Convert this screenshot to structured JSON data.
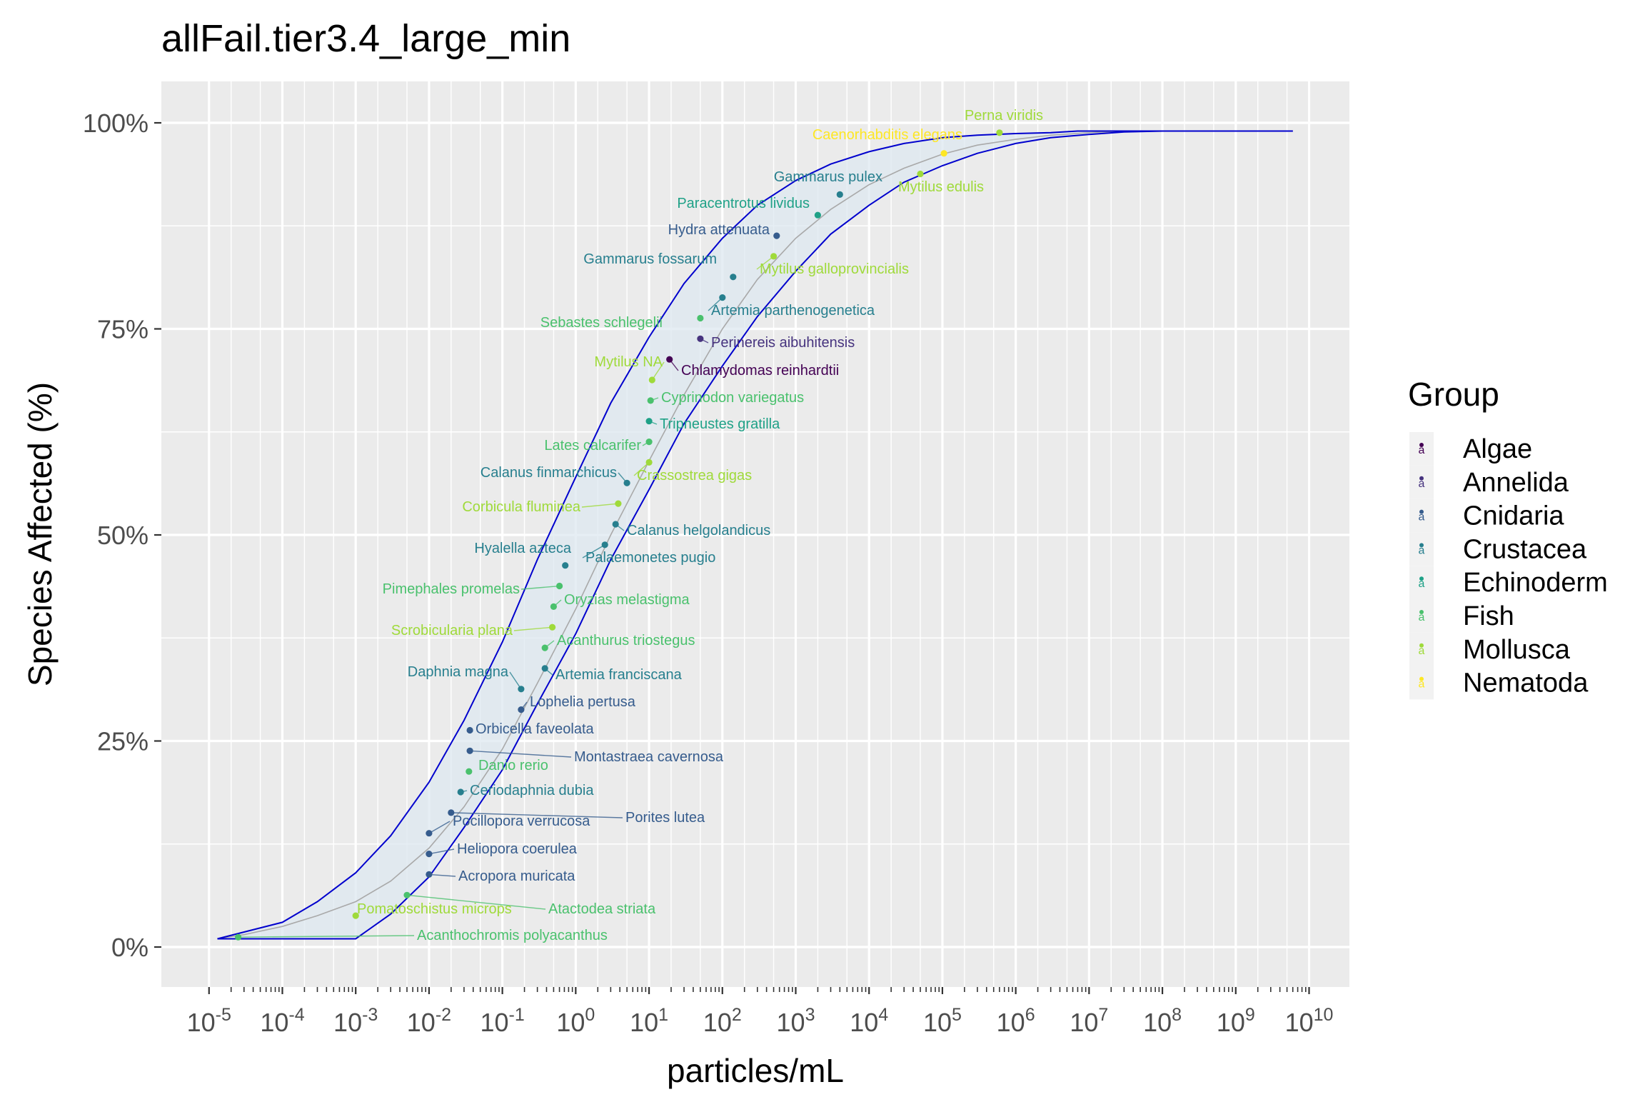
{
  "chart_data": {
    "type": "scatter",
    "title": "allFail.tier3.4_large_min",
    "xlabel": "particles/mL",
    "ylabel": "Species Affected (%)",
    "x_scale": "log10",
    "xlim": [
      1e-05,
      10000000000.0
    ],
    "ylim": [
      0,
      100
    ],
    "y_ticks": [
      "0%",
      "25%",
      "50%",
      "75%",
      "100%"
    ],
    "x_tick_exponents": [
      "-5",
      "-4",
      "-3",
      "-2",
      "-1",
      "0",
      "1",
      "2",
      "3",
      "4",
      "5",
      "6",
      "7",
      "8",
      "9",
      "10"
    ],
    "grid": true,
    "legend_title": "Group",
    "legend_position": "right",
    "colors": {
      "Algae": "#440154",
      "Annelida": "#46337E",
      "Cnidaria": "#365C8D",
      "Crustacea": "#277F8E",
      "Echinoderm": "#1FA187",
      "Fish": "#4AC16D",
      "Mollusca": "#9FDA3A",
      "Nematoda": "#FDE725",
      "panel_background": "#EBEBEB",
      "curve": "#0000CD",
      "band_fill": "#DDE8F0"
    },
    "groups": [
      "Algae",
      "Annelida",
      "Cnidaria",
      "Crustacea",
      "Echinoderm",
      "Fish",
      "Mollusca",
      "Nematoda"
    ],
    "points": [
      {
        "species": "Acanthochromis polyacanthus",
        "group": "Fish",
        "x": 2.5e-05,
        "y": 1.2
      },
      {
        "species": "Pomatoschistus microps",
        "group": "Mollusca",
        "x": 0.001,
        "y": 3.8
      },
      {
        "species": "Atactodea striata",
        "group": "Fish",
        "x": 0.005,
        "y": 6.3
      },
      {
        "species": "Acropora muricata",
        "group": "Cnidaria",
        "x": 0.01,
        "y": 8.8
      },
      {
        "species": "Heliopora coerulea",
        "group": "Cnidaria",
        "x": 0.01,
        "y": 11.3
      },
      {
        "species": "Pocillopora verrucosa",
        "group": "Cnidaria",
        "x": 0.01,
        "y": 13.8
      },
      {
        "species": "Porites lutea",
        "group": "Cnidaria",
        "x": 0.02,
        "y": 16.3
      },
      {
        "species": "Ceriodaphnia dubia",
        "group": "Crustacea",
        "x": 0.027,
        "y": 18.8
      },
      {
        "species": "Danio rerio",
        "group": "Fish",
        "x": 0.035,
        "y": 21.3
      },
      {
        "species": "Montastraea cavernosa",
        "group": "Cnidaria",
        "x": 0.036,
        "y": 23.8
      },
      {
        "species": "Orbicella faveolata",
        "group": "Cnidaria",
        "x": 0.036,
        "y": 26.3
      },
      {
        "species": "Lophelia pertusa",
        "group": "Cnidaria",
        "x": 0.18,
        "y": 28.8
      },
      {
        "species": "Daphnia magna",
        "group": "Crustacea",
        "x": 0.18,
        "y": 31.3
      },
      {
        "species": "Artemia franciscana",
        "group": "Crustacea",
        "x": 0.38,
        "y": 33.8
      },
      {
        "species": "Acanthurus triostegus",
        "group": "Fish",
        "x": 0.38,
        "y": 36.3
      },
      {
        "species": "Scrobicularia plana",
        "group": "Mollusca",
        "x": 0.48,
        "y": 38.8
      },
      {
        "species": "Oryzias melastigma",
        "group": "Fish",
        "x": 0.5,
        "y": 41.3
      },
      {
        "species": "Pimephales promelas",
        "group": "Fish",
        "x": 0.6,
        "y": 43.8
      },
      {
        "species": "Hyalella azteca",
        "group": "Crustacea",
        "x": 0.72,
        "y": 46.3
      },
      {
        "species": "Palaemonetes pugio",
        "group": "Crustacea",
        "x": 2.5,
        "y": 48.8
      },
      {
        "species": "Calanus helgolandicus",
        "group": "Crustacea",
        "x": 3.5,
        "y": 51.3
      },
      {
        "species": "Corbicula fluminea",
        "group": "Mollusca",
        "x": 3.8,
        "y": 53.8
      },
      {
        "species": "Calanus finmarchicus",
        "group": "Crustacea",
        "x": 5.0,
        "y": 56.3
      },
      {
        "species": "Crassostrea gigas",
        "group": "Mollusca",
        "x": 10,
        "y": 58.8
      },
      {
        "species": "Lates calcarifer",
        "group": "Fish",
        "x": 10,
        "y": 61.3
      },
      {
        "species": "Tripneustes gratilla",
        "group": "Echinoderm",
        "x": 10,
        "y": 63.8
      },
      {
        "species": "Cyprinodon variegatus",
        "group": "Fish",
        "x": 10.5,
        "y": 66.3
      },
      {
        "species": "Mytilus NA",
        "group": "Mollusca",
        "x": 11,
        "y": 68.8
      },
      {
        "species": "Chlamydomas reinhardtii",
        "group": "Algae",
        "x": 19,
        "y": 71.3
      },
      {
        "species": "Perinereis aibuhitensis",
        "group": "Annelida",
        "x": 50,
        "y": 73.8
      },
      {
        "species": "Sebastes schlegelii",
        "group": "Fish",
        "x": 50,
        "y": 76.3
      },
      {
        "species": "Artemia parthenogenetica",
        "group": "Crustacea",
        "x": 100,
        "y": 78.8
      },
      {
        "species": "Gammarus fossarum",
        "group": "Crustacea",
        "x": 140,
        "y": 81.3
      },
      {
        "species": "Mytilus galloprovincialis",
        "group": "Mollusca",
        "x": 500,
        "y": 83.8
      },
      {
        "species": "Hydra attenuata",
        "group": "Cnidaria",
        "x": 550,
        "y": 86.3
      },
      {
        "species": "Paracentrotus lividus",
        "group": "Echinoderm",
        "x": 2000,
        "y": 88.8
      },
      {
        "species": "Gammarus pulex",
        "group": "Crustacea",
        "x": 4000,
        "y": 91.3
      },
      {
        "species": "Mytilus edulis",
        "group": "Mollusca",
        "x": 50000,
        "y": 93.8
      },
      {
        "species": "Caenorhabditis elegans",
        "group": "Nematoda",
        "x": 105000,
        "y": 96.3
      },
      {
        "species": "Perna viridis",
        "group": "Mollusca",
        "x": 600000,
        "y": 98.8
      }
    ],
    "fit_curve": {
      "x": [
        1.3e-05,
        3e-05,
        0.0001,
        0.0003,
        0.001,
        0.003,
        0.01,
        0.03,
        0.1,
        0.3,
        1,
        3,
        10,
        30,
        100,
        300,
        1000,
        3000,
        10000,
        30000,
        100000,
        300000,
        1000000,
        3000000,
        10000000,
        30000000,
        100000000,
        1000000000,
        6000000000
      ],
      "y": [
        1.0,
        1.5,
        2.5,
        3.8,
        5.5,
        8,
        12,
        17,
        24,
        32,
        41,
        50,
        59,
        67,
        75,
        81,
        86,
        89.5,
        92.5,
        94.5,
        96.2,
        97.3,
        98.0,
        98.5,
        98.8,
        99.0,
        99.0,
        99.0,
        99.0
      ]
    },
    "ci_upper": {
      "x": [
        1.3e-05,
        0.0001,
        0.0003,
        0.001,
        0.003,
        0.01,
        0.03,
        0.1,
        0.3,
        1,
        3,
        10,
        30,
        100,
        300,
        1000,
        3000,
        10000,
        30000,
        100000,
        300000,
        1000000,
        3000000,
        7000000,
        100000000,
        1000000000,
        6000000000
      ],
      "y": [
        1.0,
        3.0,
        5.5,
        9,
        13.5,
        20,
        27.5,
        37,
        47,
        57,
        66,
        74,
        80.5,
        86,
        90,
        93,
        95,
        96.5,
        97.5,
        98.2,
        98.5,
        98.7,
        98.8,
        99.0,
        99.0,
        99.0,
        99.0
      ]
    },
    "ci_lower": {
      "x": [
        1.3e-05,
        3e-05,
        0.001,
        0.003,
        0.01,
        0.03,
        0.1,
        0.3,
        1,
        3,
        10,
        30,
        100,
        300,
        1000,
        3000,
        10000,
        30000,
        100000,
        300000,
        1000000,
        3000000,
        10000000,
        30000000,
        100000000,
        1000000000,
        6000000000
      ],
      "y": [
        1.0,
        1.0,
        1.0,
        4,
        8.5,
        14.5,
        21.5,
        29.5,
        38,
        47,
        55.5,
        63.5,
        70.5,
        76.5,
        82,
        86.5,
        90,
        92.8,
        94.8,
        96.3,
        97.5,
        98.2,
        98.6,
        98.9,
        99.0,
        99.0,
        99.0
      ]
    }
  }
}
